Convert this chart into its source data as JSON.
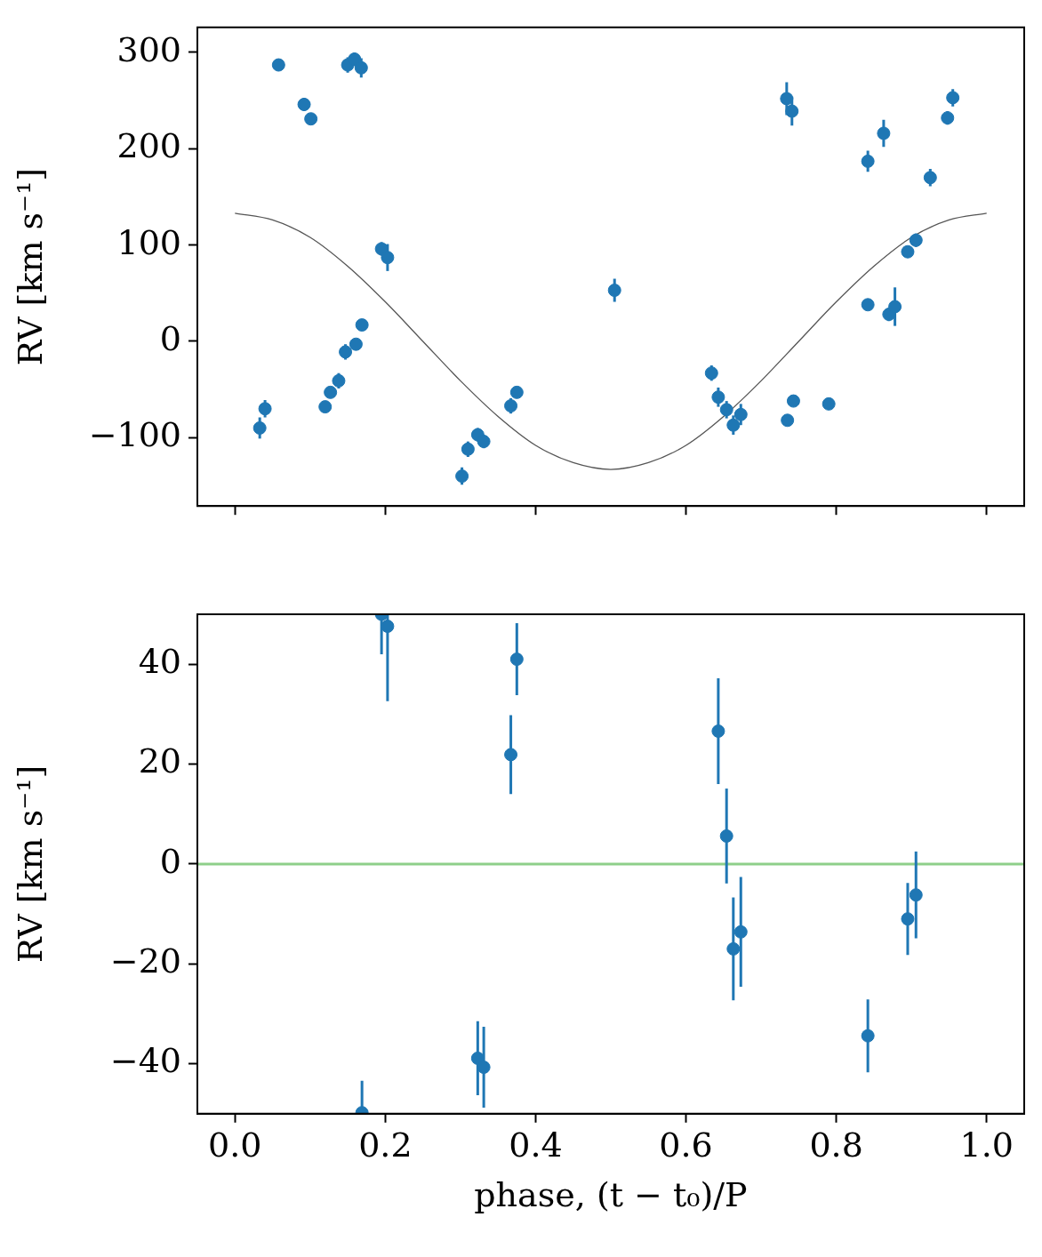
{
  "chart_data": [
    {
      "type": "scatter",
      "ylabel": "RV [km s⁻¹]",
      "xlim": [
        -0.05,
        1.05
      ],
      "xticks": [
        0,
        0.2,
        0.4,
        0.6,
        0.8,
        1
      ],
      "ylim": [
        -171,
        326
      ],
      "yticks": [
        -100,
        0,
        100,
        200,
        300
      ],
      "tick_labels": "y",
      "grid": false,
      "legend": false,
      "series": [
        {
          "marker": "circle",
          "color": "#1f77b4",
          "x": [
            0.033,
            0.04,
            0.058,
            0.092,
            0.101,
            0.12,
            0.127,
            0.138,
            0.147,
            0.15,
            0.159,
            0.161,
            0.168,
            0.169,
            0.195,
            0.203,
            0.302,
            0.31,
            0.323,
            0.331,
            0.367,
            0.375,
            0.505,
            0.634,
            0.643,
            0.654,
            0.663,
            0.673,
            0.734,
            0.741,
            0.735,
            0.743,
            0.79,
            0.842,
            0.842,
            0.863,
            0.87,
            0.878,
            0.895,
            0.906,
            0.925,
            0.948,
            0.955
          ],
          "values": [
            -90,
            -70,
            287,
            246,
            231,
            -68,
            -53,
            -41,
            -11,
            287,
            293,
            -3,
            284,
            17,
            96,
            87,
            -140,
            -112,
            -97,
            -104,
            -67,
            -53,
            53,
            -33,
            -58,
            -71,
            -87,
            -76,
            252,
            239,
            -82,
            -62,
            -65,
            187,
            38,
            216,
            28,
            36,
            93,
            105,
            170,
            232,
            253
          ],
          "errors": [
            11,
            9,
            6,
            7,
            6,
            5,
            6,
            8,
            8,
            8,
            7,
            6,
            10,
            5,
            7,
            14,
            9,
            8,
            7,
            7,
            8,
            6,
            12,
            8,
            10,
            9,
            10,
            11,
            17,
            15,
            6,
            4,
            4,
            11,
            5,
            14,
            7,
            20,
            6,
            7,
            9,
            7,
            9
          ]
        },
        {
          "type": "line",
          "color": "#555555",
          "x": [
            0,
            0.05,
            0.1,
            0.15,
            0.2,
            0.25,
            0.3,
            0.35,
            0.4,
            0.45,
            0.5,
            0.55,
            0.6,
            0.65,
            0.7,
            0.75,
            0.8,
            0.85,
            0.9,
            0.95,
            1
          ],
          "values": [
            133,
            126,
            108,
            78,
            41,
            0,
            -41,
            -78,
            -108,
            -126,
            -133,
            -126,
            -108,
            -78,
            -41,
            0,
            41,
            78,
            108,
            126,
            133
          ]
        }
      ]
    },
    {
      "type": "scatter",
      "xlabel": "phase, (t − t₀)/P",
      "ylabel": "RV [km s⁻¹]",
      "xlim": [
        -0.05,
        1.05
      ],
      "xticks": [
        {
          "value": 0,
          "label": "0.0"
        },
        0.2,
        0.4,
        0.6,
        0.8,
        {
          "value": 1,
          "label": "1.0"
        }
      ],
      "ylim": [
        -50,
        50
      ],
      "yticks": [
        -40,
        -20,
        0,
        20,
        40
      ],
      "grid": false,
      "legend": false,
      "ref_lines": [
        {
          "axis": "y",
          "value": 0,
          "color": "#8ecf8a"
        }
      ],
      "series": [
        {
          "marker": "circle",
          "color": "#1f77b4",
          "x": [
            0.169,
            0.195,
            0.203,
            0.323,
            0.331,
            0.367,
            0.375,
            0.643,
            0.654,
            0.663,
            0.673,
            0.842,
            0.895,
            0.906
          ],
          "values": [
            -49.8,
            50,
            47.6,
            -38.9,
            -40.7,
            21.9,
            41,
            26.6,
            5.6,
            -17,
            -13.6,
            -34.4,
            -11,
            -6.2
          ],
          "errors": [
            6.4,
            8,
            15,
            7.4,
            8.1,
            7.9,
            7.2,
            10.6,
            9.5,
            10.3,
            11,
            7.3,
            7.2,
            8.7
          ]
        }
      ]
    }
  ]
}
